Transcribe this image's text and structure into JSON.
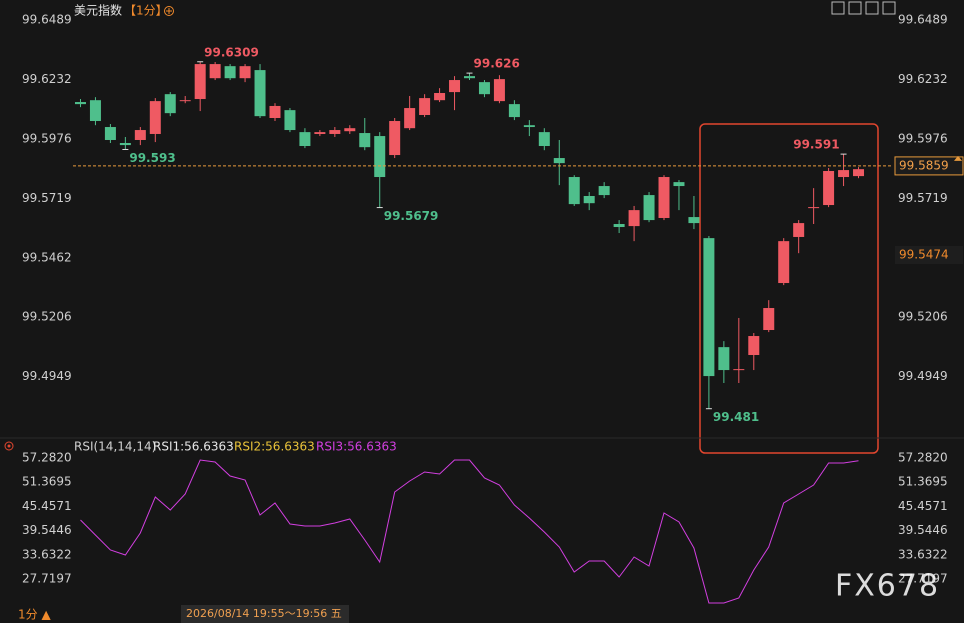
{
  "header": {
    "title": "美元指数",
    "period": "【1分】"
  },
  "chart_data": [
    {
      "type": "candlestick",
      "open": [
        99.6135,
        99.6143,
        99.6027,
        99.5958,
        99.5971,
        99.5997,
        99.6169,
        99.6139,
        99.6148,
        99.6238,
        99.629,
        99.6238,
        99.6273,
        99.6066,
        99.61,
        99.6005,
        99.5997,
        99.5997,
        99.6009,
        99.6001,
        99.5988,
        99.5906,
        99.6022,
        99.6079,
        99.6143,
        99.6178,
        99.6247,
        99.6221,
        99.6139,
        99.6126,
        99.6035,
        99.6005,
        99.5893,
        99.5811,
        99.5729,
        99.5772,
        99.5608,
        99.5599,
        99.5733,
        99.5634,
        99.5789,
        99.5638,
        99.5547,
        99.5076,
        99.4977,
        99.5042,
        99.515,
        99.5353,
        99.5552,
        99.5677,
        99.569,
        99.5811,
        99.5815
      ],
      "high": [
        99.6148,
        99.6156,
        99.604,
        99.5984,
        99.6027,
        99.6152,
        99.6178,
        99.6161,
        99.6309,
        99.6308,
        99.6299,
        99.6299,
        99.6299,
        99.613,
        99.6109,
        99.6022,
        99.6014,
        99.6027,
        99.6035,
        99.6066,
        99.6005,
        99.6066,
        99.6161,
        99.6169,
        99.6195,
        99.6247,
        99.626,
        99.623,
        99.6251,
        99.6143,
        99.6057,
        99.6022,
        99.5971,
        99.5819,
        99.5746,
        99.5789,
        99.5625,
        99.5686,
        99.5746,
        99.5819,
        99.5798,
        99.5729,
        99.5556,
        99.5102,
        99.5202,
        99.5137,
        99.5279,
        99.5547,
        99.5625,
        99.5763,
        99.585,
        99.591,
        99.5854
      ],
      "low": [
        99.6113,
        99.6035,
        99.5958,
        99.593,
        99.5949,
        99.5962,
        99.6074,
        99.613,
        99.6096,
        99.623,
        99.623,
        99.6221,
        99.6066,
        99.6053,
        99.6005,
        99.5936,
        99.5988,
        99.5984,
        99.5997,
        99.5927,
        99.5679,
        99.5893,
        99.6014,
        99.607,
        99.6135,
        99.61,
        99.623,
        99.6156,
        99.613,
        99.6057,
        99.5988,
        99.5927,
        99.5776,
        99.5686,
        99.5668,
        99.572,
        99.5569,
        99.5534,
        99.5616,
        99.5625,
        99.5668,
        99.5586,
        99.481,
        99.4921,
        99.4921,
        99.4977,
        99.5141,
        99.5344,
        99.5482,
        99.5608,
        99.5681,
        99.5772,
        99.5806
      ],
      "close": [
        99.6126,
        99.6053,
        99.5971,
        99.5949,
        99.6014,
        99.6139,
        99.6087,
        99.6143,
        99.6299,
        99.6299,
        99.6238,
        99.629,
        99.6074,
        99.6118,
        99.6014,
        99.5945,
        99.6005,
        99.6014,
        99.6022,
        99.594,
        99.5811,
        99.6053,
        99.6109,
        99.6152,
        99.6174,
        99.623,
        99.6238,
        99.6169,
        99.6234,
        99.607,
        99.6027,
        99.5945,
        99.5871,
        99.5694,
        99.5698,
        99.5733,
        99.5595,
        99.5668,
        99.5625,
        99.5811,
        99.5772,
        99.5612,
        99.4951,
        99.4977,
        99.4981,
        99.5124,
        99.5245,
        99.5534,
        99.5612,
        99.5681,
        99.5837,
        99.5841,
        99.5845
      ],
      "up_color": "#ef5a63",
      "down_color": "#4fbf8c",
      "annotations": [
        99.6309,
        99.593,
        99.5679,
        99.626,
        99.481,
        99.591
      ],
      "last_price": 99.5859,
      "marker_price": 99.5474,
      "ylim": [
        99.4718,
        99.6524
      ],
      "yticks": [
        99.6489,
        99.6232,
        99.5976,
        99.5719,
        99.5462,
        99.5206,
        99.4949
      ],
      "grid": false
    },
    {
      "type": "line",
      "title": "RSI(14,14,14)",
      "series": [
        {
          "name": "RSI1:56.6363",
          "color": "#e6e6e6"
        },
        {
          "name": "RSI2:56.6363",
          "color": "#e8c23a"
        },
        {
          "name": "RSI3:56.6363",
          "color": "#d23fe0",
          "values": [
            42.13,
            38.47,
            34.8,
            33.58,
            38.96,
            47.75,
            44.58,
            48.49,
            56.79,
            56.3,
            52.88,
            51.91,
            43.35,
            46.29,
            41.16,
            40.67,
            40.67,
            41.4,
            42.38,
            37.25,
            31.87,
            48.97,
            51.66,
            53.86,
            53.37,
            56.79,
            56.79,
            52.39,
            50.68,
            45.8,
            42.62,
            39.2,
            35.54,
            29.43,
            32.12,
            32.12,
            28.21,
            33.09,
            30.9,
            43.84,
            41.64,
            35.29,
            21.86,
            21.86,
            23.08,
            29.92,
            35.54,
            46.29,
            48.49,
            50.68,
            56.06,
            56.06,
            56.6363
          ]
        }
      ],
      "ylim": [
        20.64,
        58.75
      ],
      "yticks": [
        {
          "value": 57.282,
          "label": "57.2820"
        },
        51.3695,
        45.4571,
        39.5446,
        33.6322,
        27.7197
      ],
      "grid": false
    }
  ],
  "footer": {
    "period": "1分 ▲",
    "time": "2026/08/14 19:55～19:56 五"
  },
  "watermark": "FX678"
}
